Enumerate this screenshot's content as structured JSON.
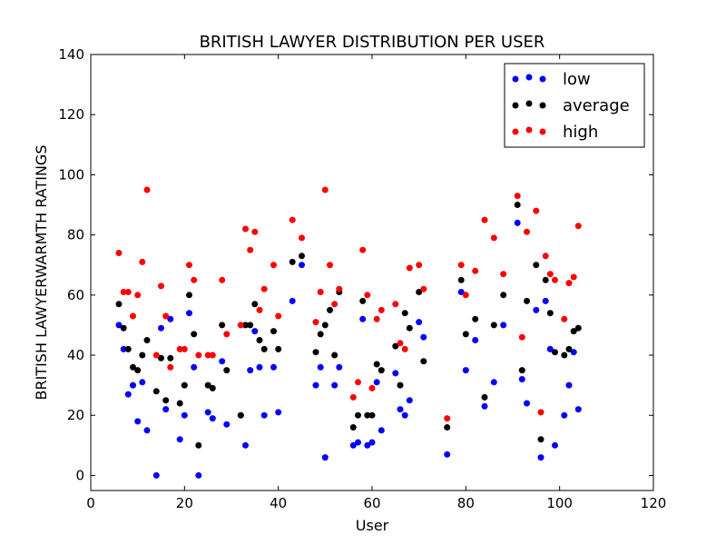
{
  "chart_data": {
    "type": "scatter",
    "title": "BRITISH LAWYER DISTRIBUTION PER USER",
    "xlabel": "User",
    "ylabel": "BRITISH LAWYERWARMTH RATINGS",
    "xlim": [
      0,
      120
    ],
    "ylim": [
      -5,
      140
    ],
    "xticks": [
      0,
      20,
      40,
      60,
      80,
      100,
      120
    ],
    "yticks": [
      0,
      20,
      40,
      60,
      80,
      100,
      120,
      140
    ],
    "grid": false,
    "legend_position": "top-right",
    "series": [
      {
        "name": "low",
        "color": "#0000ff",
        "x": [
          6,
          7,
          8,
          9,
          10,
          11,
          12,
          14,
          15,
          16,
          17,
          19,
          20,
          21,
          22,
          23,
          25,
          26,
          28,
          29,
          32,
          33,
          34,
          35,
          36,
          37,
          39,
          40,
          43,
          45,
          48,
          49,
          50,
          52,
          53,
          56,
          57,
          58,
          59,
          60,
          61,
          62,
          65,
          66,
          67,
          68,
          70,
          71,
          76,
          79,
          80,
          82,
          84,
          86,
          88,
          91,
          92,
          93,
          95,
          96,
          97,
          98,
          99,
          101,
          102,
          103,
          104
        ],
        "y": [
          50,
          42,
          27,
          30,
          18,
          31,
          15,
          0,
          49,
          22,
          52,
          12,
          20,
          54,
          36,
          0,
          21,
          19,
          38,
          17,
          20,
          10,
          35,
          48,
          36,
          20,
          36,
          21,
          58,
          70,
          30,
          36,
          6,
          30,
          36,
          10,
          11,
          52,
          10,
          11,
          31,
          15,
          34,
          22,
          20,
          25,
          51,
          46,
          7,
          61,
          35,
          45,
          23,
          31,
          50,
          84,
          32,
          24,
          55,
          6,
          58,
          42,
          10,
          20,
          30,
          41,
          22
        ]
      },
      {
        "name": "average",
        "color": "#000000",
        "x": [
          6,
          7,
          8,
          9,
          10,
          11,
          12,
          14,
          15,
          16,
          17,
          19,
          20,
          21,
          22,
          23,
          25,
          26,
          28,
          29,
          32,
          33,
          34,
          35,
          36,
          37,
          39,
          40,
          43,
          45,
          48,
          49,
          50,
          51,
          52,
          53,
          56,
          57,
          58,
          59,
          60,
          61,
          62,
          65,
          66,
          67,
          68,
          70,
          71,
          76,
          79,
          80,
          82,
          84,
          86,
          88,
          91,
          92,
          93,
          95,
          96,
          97,
          98,
          99,
          101,
          102,
          103,
          104
        ],
        "y": [
          57,
          49,
          42,
          36,
          35,
          40,
          45,
          28,
          39,
          25,
          39,
          24,
          30,
          60,
          47,
          10,
          30,
          29,
          50,
          35,
          20,
          50,
          50,
          57,
          45,
          42,
          48,
          42,
          71,
          73,
          41,
          47,
          50,
          55,
          40,
          61,
          16,
          20,
          58,
          20,
          20,
          37,
          35,
          43,
          30,
          54,
          49,
          61,
          38,
          16,
          65,
          47,
          52,
          26,
          50,
          60,
          90,
          35,
          58,
          70,
          12,
          65,
          54,
          41,
          40,
          42,
          48,
          49
        ]
      },
      {
        "name": "high",
        "color": "#ff0000",
        "x": [
          6,
          7,
          8,
          9,
          10,
          11,
          12,
          14,
          15,
          16,
          17,
          19,
          20,
          21,
          22,
          23,
          25,
          26,
          28,
          29,
          32,
          33,
          34,
          35,
          36,
          37,
          39,
          40,
          43,
          45,
          48,
          49,
          50,
          51,
          52,
          53,
          56,
          57,
          58,
          59,
          60,
          61,
          62,
          65,
          66,
          67,
          68,
          70,
          71,
          76,
          79,
          80,
          82,
          84,
          86,
          88,
          91,
          92,
          93,
          95,
          96,
          97,
          98,
          99,
          101,
          102,
          103,
          104
        ],
        "y": [
          74,
          61,
          61,
          53,
          60,
          71,
          95,
          40,
          63,
          53,
          36,
          42,
          42,
          70,
          65,
          40,
          40,
          40,
          65,
          47,
          50,
          82,
          75,
          81,
          55,
          62,
          70,
          53,
          85,
          79,
          51,
          61,
          95,
          70,
          57,
          62,
          26,
          31,
          75,
          60,
          29,
          52,
          55,
          57,
          44,
          42,
          69,
          70,
          62,
          19,
          70,
          60,
          68,
          85,
          79,
          67,
          93,
          46,
          81,
          88,
          21,
          73,
          67,
          65,
          52,
          64,
          66,
          83
        ]
      }
    ]
  }
}
